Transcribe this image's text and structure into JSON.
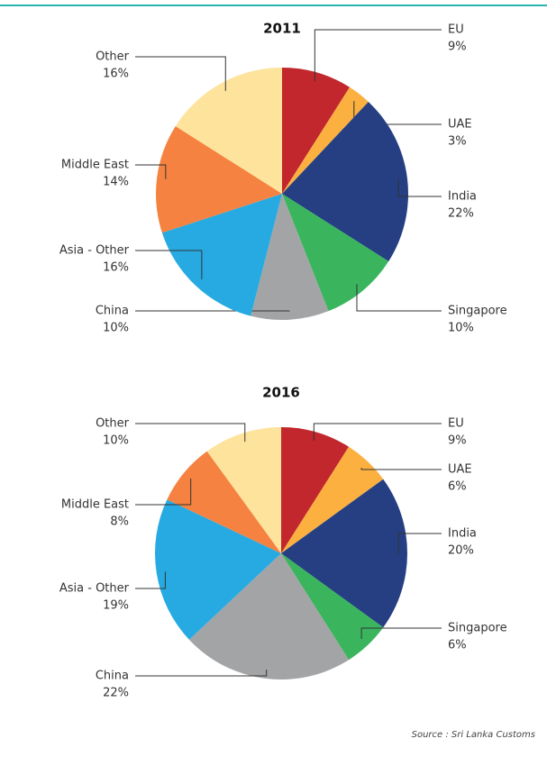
{
  "chart_data": [
    {
      "type": "pie",
      "title": "2011",
      "categories": [
        "EU",
        "UAE",
        "India",
        "Singapore",
        "China",
        "Asia - Other",
        "Middle East",
        "Other"
      ],
      "values": [
        9,
        3,
        22,
        10,
        10,
        16,
        14,
        16
      ],
      "value_labels": [
        "9%",
        "3%",
        "22%",
        "10%",
        "10%",
        "16%",
        "14%",
        "16%"
      ],
      "colors": [
        "#c1272d",
        "#fbb040",
        "#253f82",
        "#3ab55e",
        "#a3a4a6",
        "#27aae1",
        "#f58240",
        "#fde39b"
      ]
    },
    {
      "type": "pie",
      "title": "2016",
      "categories": [
        "EU",
        "UAE",
        "India",
        "Singapore",
        "China",
        "Asia - Other",
        "Middle East",
        "Other"
      ],
      "values": [
        9,
        6,
        20,
        6,
        22,
        19,
        8,
        10
      ],
      "value_labels": [
        "9%",
        "6%",
        "20%",
        "6%",
        "22%",
        "19%",
        "8%",
        "10%"
      ],
      "colors": [
        "#c1272d",
        "#fbb040",
        "#253f82",
        "#3ab55e",
        "#a3a4a6",
        "#27aae1",
        "#f58240",
        "#fde39b"
      ]
    }
  ],
  "source": "Source : Sri Lanka Customs"
}
